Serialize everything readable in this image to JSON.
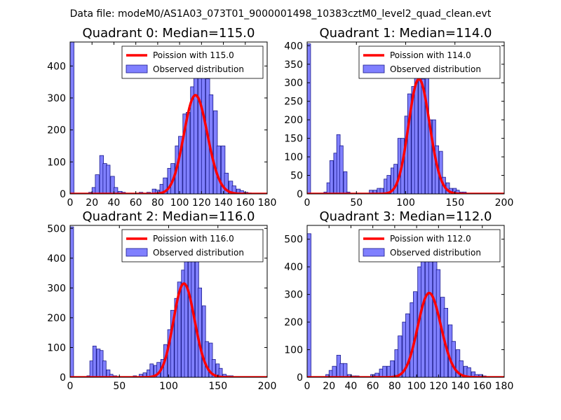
{
  "suptitle": "Data file: modeM0/AS1A03_073T01_9000001498_10383cztM0_level2_quad_clean.evt",
  "colors": {
    "bar_fill": "#8080ff",
    "bar_edge": "#1a1a8c",
    "poisson_line": "#ff0000",
    "axes": "#000000"
  },
  "chart_data": [
    {
      "type": "bar",
      "title": "Quadrant 0: Median=115.0",
      "median": 115.0,
      "xlim": [
        0,
        180
      ],
      "ylim": [
        0,
        475
      ],
      "xticks": [
        0,
        20,
        40,
        60,
        80,
        100,
        120,
        140,
        160,
        180
      ],
      "yticks": [
        0,
        100,
        200,
        300,
        400
      ],
      "bin_width": 3.5,
      "legend": {
        "position": "upper right",
        "line_label": "Poission with 115.0",
        "bar_label": "Observed distribution"
      },
      "bars": [
        [
          0,
          480
        ],
        [
          17,
          5
        ],
        [
          20,
          20
        ],
        [
          23,
          60
        ],
        [
          27,
          120
        ],
        [
          30,
          95
        ],
        [
          33,
          90
        ],
        [
          37,
          55
        ],
        [
          40,
          20
        ],
        [
          44,
          8
        ],
        [
          47,
          5
        ],
        [
          63,
          5
        ],
        [
          70,
          5
        ],
        [
          75,
          15
        ],
        [
          78,
          12
        ],
        [
          82,
          30
        ],
        [
          85,
          50
        ],
        [
          89,
          80
        ],
        [
          92,
          95
        ],
        [
          96,
          150
        ],
        [
          99,
          180
        ],
        [
          103,
          250
        ],
        [
          106,
          255
        ],
        [
          110,
          335
        ],
        [
          113,
          370
        ],
        [
          117,
          400
        ],
        [
          120,
          430
        ],
        [
          124,
          360
        ],
        [
          127,
          310
        ],
        [
          131,
          260
        ],
        [
          134,
          150
        ],
        [
          138,
          150
        ],
        [
          141,
          65
        ],
        [
          145,
          40
        ],
        [
          148,
          25
        ],
        [
          152,
          15
        ],
        [
          155,
          10
        ],
        [
          159,
          5
        ],
        [
          162,
          3
        ],
        [
          166,
          2
        ]
      ],
      "poisson": {
        "lambda": 115.0,
        "scale": 8300
      }
    },
    {
      "type": "bar",
      "title": "Quadrant 1: Median=114.0",
      "median": 114.0,
      "xlim": [
        0,
        200
      ],
      "ylim": [
        0,
        410
      ],
      "xticks": [
        0,
        50,
        100,
        150,
        200
      ],
      "yticks": [
        0,
        50,
        100,
        150,
        200,
        250,
        300,
        350,
        400
      ],
      "bin_width": 3.5,
      "legend": {
        "position": "upper right",
        "line_label": "Poission with 114.0",
        "bar_label": "Observed distribution"
      },
      "bars": [
        [
          0,
          405
        ],
        [
          17,
          5
        ],
        [
          20,
          30
        ],
        [
          23,
          90
        ],
        [
          27,
          110
        ],
        [
          30,
          160
        ],
        [
          33,
          130
        ],
        [
          37,
          60
        ],
        [
          40,
          5
        ],
        [
          63,
          10
        ],
        [
          67,
          10
        ],
        [
          71,
          15
        ],
        [
          74,
          15
        ],
        [
          78,
          40
        ],
        [
          81,
          50
        ],
        [
          85,
          70
        ],
        [
          88,
          80
        ],
        [
          92,
          150
        ],
        [
          95,
          150
        ],
        [
          99,
          210
        ],
        [
          102,
          270
        ],
        [
          106,
          290
        ],
        [
          109,
          330
        ],
        [
          113,
          380
        ],
        [
          116,
          310
        ],
        [
          120,
          325
        ],
        [
          123,
          200
        ],
        [
          127,
          200
        ],
        [
          130,
          130
        ],
        [
          134,
          115
        ],
        [
          137,
          45
        ],
        [
          141,
          30
        ],
        [
          144,
          15
        ],
        [
          148,
          15
        ],
        [
          151,
          10
        ],
        [
          155,
          5
        ],
        [
          158,
          5
        ],
        [
          162,
          2
        ]
      ],
      "poisson": {
        "lambda": 114.0,
        "scale": 8300
      }
    },
    {
      "type": "bar",
      "title": "Quadrant 2: Median=116.0",
      "median": 116.0,
      "xlim": [
        0,
        200
      ],
      "ylim": [
        0,
        510
      ],
      "xticks": [
        0,
        50,
        100,
        150,
        200
      ],
      "yticks": [
        0,
        100,
        200,
        300,
        400,
        500
      ],
      "bin_width": 3.5,
      "legend": {
        "position": "upper right",
        "line_label": "Poission with 116.0",
        "bar_label": "Observed distribution"
      },
      "bars": [
        [
          0,
          505
        ],
        [
          17,
          5
        ],
        [
          20,
          55
        ],
        [
          23,
          105
        ],
        [
          27,
          95
        ],
        [
          30,
          90
        ],
        [
          33,
          55
        ],
        [
          37,
          25
        ],
        [
          40,
          10
        ],
        [
          44,
          5
        ],
        [
          64,
          5
        ],
        [
          70,
          10
        ],
        [
          74,
          15
        ],
        [
          78,
          25
        ],
        [
          81,
          45
        ],
        [
          85,
          40
        ],
        [
          88,
          50
        ],
        [
          92,
          60
        ],
        [
          95,
          110
        ],
        [
          99,
          160
        ],
        [
          102,
          225
        ],
        [
          106,
          265
        ],
        [
          109,
          320
        ],
        [
          113,
          360
        ],
        [
          116,
          470
        ],
        [
          120,
          480
        ],
        [
          123,
          400
        ],
        [
          127,
          400
        ],
        [
          130,
          300
        ],
        [
          134,
          240
        ],
        [
          137,
          120
        ],
        [
          141,
          115
        ],
        [
          144,
          60
        ],
        [
          148,
          45
        ],
        [
          151,
          30
        ],
        [
          155,
          10
        ],
        [
          159,
          5
        ],
        [
          162,
          5
        ],
        [
          166,
          2
        ]
      ],
      "poisson": {
        "lambda": 116.0,
        "scale": 8500
      }
    },
    {
      "type": "bar",
      "title": "Quadrant 3: Median=112.0",
      "median": 112.0,
      "xlim": [
        0,
        180
      ],
      "ylim": [
        0,
        550
      ],
      "xticks": [
        0,
        20,
        40,
        60,
        80,
        100,
        120,
        140,
        160,
        180
      ],
      "yticks": [
        0,
        100,
        200,
        300,
        400,
        500
      ],
      "bin_width": 3.5,
      "legend": {
        "position": "upper right",
        "line_label": "Poission with 112.0",
        "bar_label": "Observed distribution"
      },
      "bars": [
        [
          0,
          520
        ],
        [
          17,
          10
        ],
        [
          20,
          25
        ],
        [
          23,
          40
        ],
        [
          27,
          80
        ],
        [
          30,
          50
        ],
        [
          33,
          50
        ],
        [
          37,
          10
        ],
        [
          41,
          5
        ],
        [
          44,
          5
        ],
        [
          58,
          10
        ],
        [
          62,
          15
        ],
        [
          66,
          30
        ],
        [
          69,
          40
        ],
        [
          73,
          40
        ],
        [
          76,
          60
        ],
        [
          80,
          100
        ],
        [
          83,
          150
        ],
        [
          87,
          200
        ],
        [
          90,
          230
        ],
        [
          94,
          270
        ],
        [
          97,
          310
        ],
        [
          101,
          400
        ],
        [
          104,
          440
        ],
        [
          108,
          490
        ],
        [
          111,
          520
        ],
        [
          115,
          460
        ],
        [
          118,
          390
        ],
        [
          122,
          290
        ],
        [
          125,
          250
        ],
        [
          129,
          190
        ],
        [
          132,
          130
        ],
        [
          136,
          100
        ],
        [
          139,
          60
        ],
        [
          143,
          40
        ],
        [
          146,
          35
        ],
        [
          150,
          20
        ],
        [
          153,
          10
        ],
        [
          157,
          10
        ],
        [
          160,
          5
        ]
      ],
      "poisson": {
        "lambda": 112.0,
        "scale": 8100
      }
    }
  ]
}
